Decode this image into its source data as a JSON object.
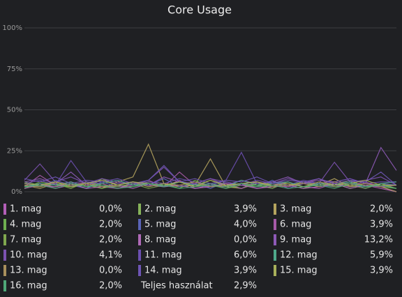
{
  "chart_data": {
    "type": "line",
    "title": "Core Usage",
    "ylim": [
      0,
      100
    ],
    "yticks": [
      {
        "value": 0,
        "label": "0%"
      },
      {
        "value": 25,
        "label": "25%"
      },
      {
        "value": 50,
        "label": "50%"
      },
      {
        "value": 75,
        "label": "75%"
      },
      {
        "value": 100,
        "label": "100%"
      }
    ],
    "grid": true,
    "series": [
      {
        "name": "1. mag",
        "color": "#b35fb8",
        "current": 0.0,
        "current_label": "0,0%",
        "values": [
          3,
          5,
          2,
          4,
          6,
          3,
          2,
          5,
          4,
          3,
          7,
          2,
          4,
          3,
          5,
          2,
          4,
          6,
          3,
          2,
          5,
          3,
          4,
          2,
          0
        ]
      },
      {
        "name": "2. mag",
        "color": "#86b35a",
        "current": 3.9,
        "current_label": "3,9%",
        "values": [
          6,
          4,
          3,
          5,
          2,
          8,
          4,
          3,
          6,
          5,
          3,
          4,
          7,
          3,
          5,
          4,
          2,
          6,
          3,
          5,
          4,
          7,
          3,
          5,
          4
        ]
      },
      {
        "name": "3. mag",
        "color": "#b5a45e",
        "current": 2.0,
        "current_label": "2,0%",
        "values": [
          4,
          2,
          5,
          3,
          4,
          2,
          6,
          9,
          29,
          5,
          3,
          4,
          20,
          3,
          2,
          5,
          4,
          3,
          6,
          4,
          8,
          3,
          5,
          4,
          2
        ]
      },
      {
        "name": "4. mag",
        "color": "#6fb050",
        "current": 2.0,
        "current_label": "2,0%",
        "values": [
          2,
          6,
          4,
          3,
          5,
          2,
          4,
          6,
          3,
          5,
          2,
          7,
          3,
          4,
          2,
          5,
          3,
          4,
          6,
          3,
          5,
          2,
          4,
          3,
          2
        ]
      },
      {
        "name": "5. mag",
        "color": "#5a64b8",
        "current": 4.0,
        "current_label": "4,0%",
        "values": [
          5,
          3,
          7,
          4,
          2,
          6,
          3,
          5,
          4,
          8,
          3,
          5,
          2,
          6,
          4,
          3,
          7,
          2,
          5,
          4,
          3,
          6,
          2,
          5,
          4
        ]
      },
      {
        "name": "6. mag",
        "color": "#a65aa8",
        "current": 3.9,
        "current_label": "3,9%",
        "values": [
          3,
          10,
          4,
          6,
          3,
          5,
          2,
          4,
          7,
          3,
          12,
          4,
          3,
          5,
          2,
          6,
          4,
          3,
          5,
          8,
          3,
          4,
          6,
          3,
          4
        ]
      },
      {
        "name": "7. mag",
        "color": "#80a84f",
        "current": 2.0,
        "current_label": "2,0%",
        "values": [
          4,
          3,
          5,
          2,
          6,
          4,
          3,
          5,
          2,
          4,
          6,
          3,
          5,
          2,
          4,
          3,
          6,
          4,
          2,
          5,
          3,
          4,
          2,
          5,
          2
        ]
      },
      {
        "name": "8. mag",
        "color": "#b06ab8",
        "current": 0.0,
        "current_label": "0,0%",
        "values": [
          2,
          4,
          3,
          5,
          2,
          3,
          4,
          2,
          5,
          3,
          4,
          2,
          3,
          5,
          4,
          2,
          3,
          4,
          2,
          3,
          5,
          2,
          4,
          3,
          0
        ]
      },
      {
        "name": "9. mag",
        "color": "#8e5ab8",
        "current": 13.2,
        "current_label": "13,2%",
        "values": [
          6,
          8,
          5,
          12,
          4,
          7,
          5,
          6,
          4,
          9,
          6,
          5,
          8,
          4,
          7,
          5,
          6,
          9,
          5,
          7,
          6,
          8,
          5,
          27,
          13
        ]
      },
      {
        "name": "10. mag",
        "color": "#7c52b0",
        "current": 4.1,
        "current_label": "4,1%",
        "values": [
          7,
          17,
          6,
          9,
          5,
          8,
          6,
          4,
          7,
          15,
          6,
          5,
          8,
          6,
          4,
          7,
          5,
          8,
          6,
          5,
          18,
          6,
          7,
          9,
          4
        ]
      },
      {
        "name": "11. mag",
        "color": "#6b4fb0",
        "current": 6.0,
        "current_label": "6,0%",
        "values": [
          5,
          7,
          4,
          19,
          6,
          5,
          7,
          4,
          6,
          5,
          8,
          6,
          4,
          7,
          24,
          5,
          6,
          4,
          7,
          5,
          6,
          8,
          5,
          6,
          6
        ]
      },
      {
        "name": "12. mag",
        "color": "#4fa88a",
        "current": 5.9,
        "current_label": "5,9%",
        "values": [
          3,
          5,
          4,
          6,
          3,
          5,
          7,
          4,
          5,
          3,
          6,
          4,
          5,
          3,
          7,
          4,
          5,
          6,
          3,
          5,
          4,
          6,
          3,
          5,
          6
        ]
      },
      {
        "name": "13. mag",
        "color": "#a88f5c",
        "current": 0.0,
        "current_label": "0,0%",
        "values": [
          4,
          3,
          6,
          4,
          5,
          3,
          4,
          6,
          3,
          5,
          4,
          6,
          3,
          4,
          5,
          6,
          3,
          4,
          5,
          3,
          6,
          4,
          5,
          3,
          0
        ]
      },
      {
        "name": "14. mag",
        "color": "#6e55b5",
        "current": 3.9,
        "current_label": "3,9%",
        "values": [
          8,
          6,
          9,
          5,
          7,
          6,
          8,
          5,
          7,
          16,
          6,
          8,
          5,
          7,
          6,
          9,
          5,
          7,
          6,
          8,
          5,
          7,
          6,
          12,
          4
        ]
      },
      {
        "name": "15. mag",
        "color": "#a8b05a",
        "current": 3.9,
        "current_label": "3,9%",
        "values": [
          5,
          4,
          6,
          3,
          5,
          7,
          4,
          6,
          5,
          4,
          6,
          3,
          7,
          4,
          5,
          6,
          4,
          5,
          3,
          6,
          4,
          5,
          7,
          4,
          4
        ]
      },
      {
        "name": "16. mag",
        "color": "#4fa878",
        "current": 2.0,
        "current_label": "2,0%",
        "values": [
          3,
          4,
          2,
          5,
          3,
          4,
          2,
          3,
          5,
          4,
          2,
          3,
          4,
          2,
          5,
          3,
          4,
          2,
          3,
          4,
          2,
          5,
          3,
          4,
          2
        ]
      }
    ],
    "total": {
      "name": "Teljes használat",
      "value": 2.9,
      "label": "2,9%"
    }
  }
}
